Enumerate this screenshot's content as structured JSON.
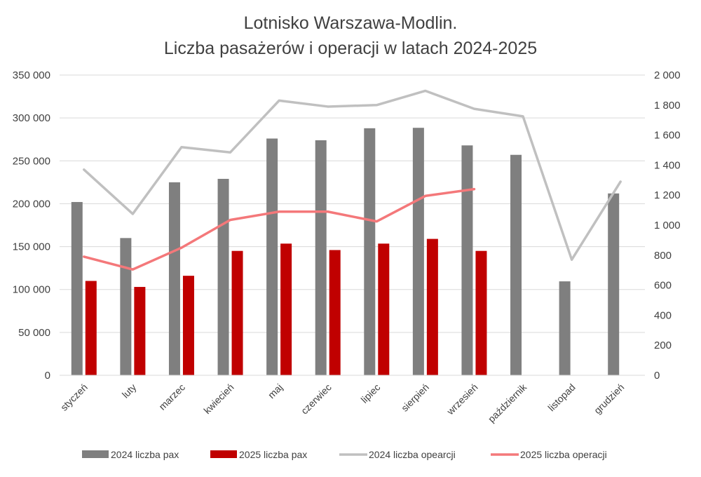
{
  "chart_data": {
    "type": "bar",
    "title_line1": "Lotnisko Warszawa-Modlin.",
    "title_line2": "Liczba pasażerów i operacji  w latach 2024-2025",
    "categories": [
      "styczeń",
      "luty",
      "marzec",
      "kwiecień",
      "maj",
      "czerwiec",
      "lipiec",
      "sierpień",
      "wrzesień",
      "październik",
      "listopad",
      "grudzień"
    ],
    "y_left": {
      "min": 0,
      "max": 350000,
      "ticks": [
        0,
        50000,
        100000,
        150000,
        200000,
        250000,
        300000,
        350000
      ],
      "tick_labels": [
        "0",
        "50 000",
        "100 000",
        "150 000",
        "200 000",
        "250 000",
        "300 000",
        "350 000"
      ]
    },
    "y_right": {
      "min": 0,
      "max": 2000,
      "ticks": [
        0,
        200,
        400,
        600,
        800,
        1000,
        1200,
        1400,
        1600,
        1800,
        2000
      ],
      "tick_labels": [
        "0",
        "200",
        "400",
        "600",
        "800",
        "1 000",
        "1 200",
        "1 400",
        "1 600",
        "1 800",
        "2 000"
      ]
    },
    "grid": true,
    "legend_position": "bottom",
    "series": [
      {
        "name": "2024 liczba pax",
        "kind": "bar",
        "axis": "left",
        "color": "#7f7f7f",
        "values": [
          202000,
          160000,
          225000,
          229000,
          276000,
          274000,
          288000,
          288500,
          268000,
          257000,
          109500,
          212000
        ]
      },
      {
        "name": "2025 liczba pax",
        "kind": "bar",
        "axis": "left",
        "color": "#c00000",
        "values": [
          110000,
          103000,
          116000,
          145000,
          153500,
          146000,
          153500,
          159000,
          145000,
          null,
          null,
          null
        ]
      },
      {
        "name": "2024 liczba opearcji",
        "kind": "line",
        "axis": "right",
        "color": "#c0c0c0",
        "values": [
          1370,
          1075,
          1520,
          1485,
          1830,
          1790,
          1800,
          1895,
          1775,
          1725,
          770,
          1290
        ]
      },
      {
        "name": "2025 liczba operacji",
        "kind": "line",
        "axis": "right",
        "color": "#f4787a",
        "values": [
          790,
          705,
          850,
          1035,
          1090,
          1090,
          1025,
          1195,
          1240,
          null,
          null,
          null
        ]
      }
    ]
  }
}
